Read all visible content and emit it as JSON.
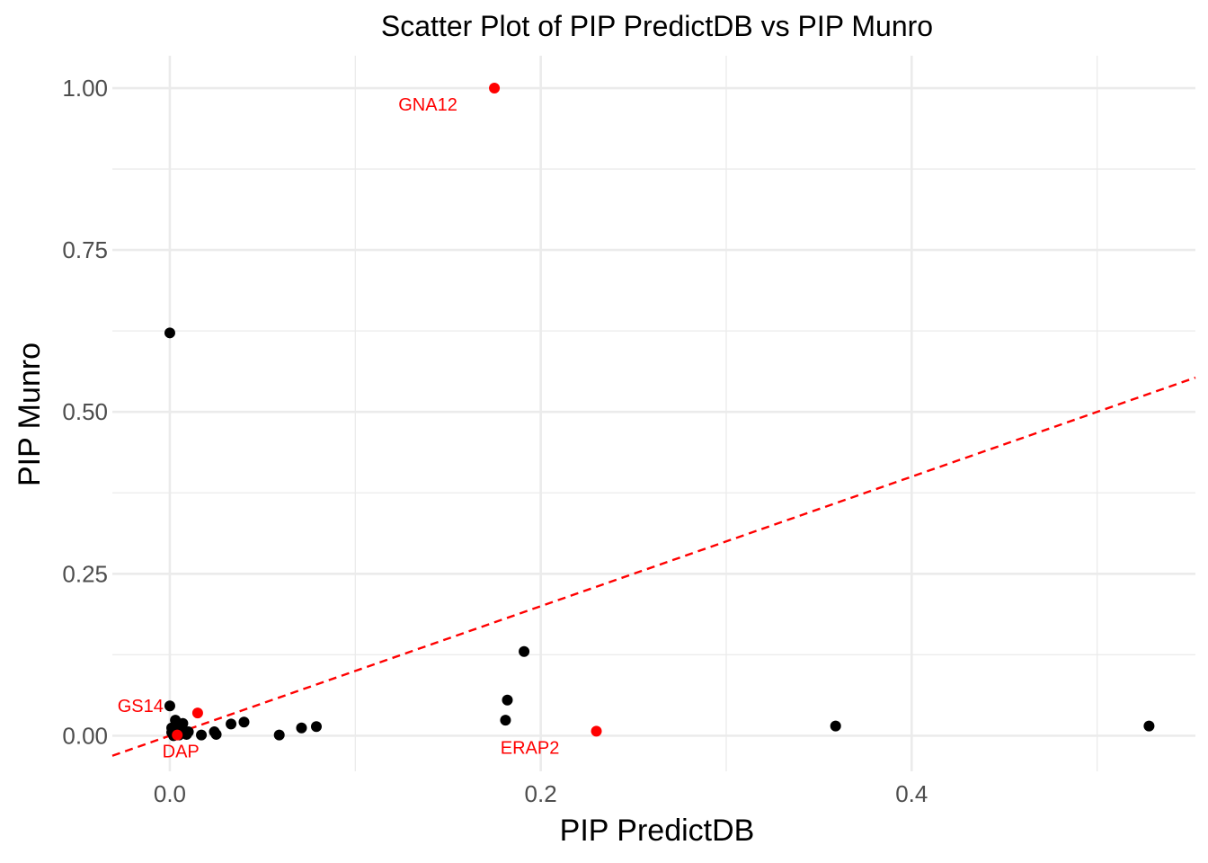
{
  "chart_data": {
    "type": "scatter",
    "title": "Scatter Plot of PIP PredictDB vs PIP Munro",
    "xlabel": "PIP PredictDB",
    "ylabel": "PIP Munro",
    "xlim": [
      -0.031,
      0.553
    ],
    "ylim": [
      -0.055,
      1.05
    ],
    "x_ticks": [
      0.0,
      0.2,
      0.4
    ],
    "x_tick_labels": [
      "0.0",
      "0.2",
      "0.4"
    ],
    "y_ticks": [
      0.0,
      0.25,
      0.5,
      0.75,
      1.0
    ],
    "y_tick_labels": [
      "0.00",
      "0.25",
      "0.50",
      "0.75",
      "1.00"
    ],
    "grid": true,
    "legend": "none",
    "colors": {
      "normal": "#000000",
      "highlight": "#ff0000",
      "reference_line": "#ff0000",
      "grid": "#ebebeb"
    },
    "reference_line": {
      "type": "identity",
      "style": "dashed",
      "slope": 1,
      "intercept": 0
    },
    "points": [
      {
        "x": 0.0,
        "y": 0.622
      },
      {
        "x": 0.0,
        "y": 0.046
      },
      {
        "x": 0.001,
        "y": 0.012
      },
      {
        "x": 0.001,
        "y": 0.005
      },
      {
        "x": 0.002,
        "y": 0.0
      },
      {
        "x": 0.003,
        "y": 0.008
      },
      {
        "x": 0.003,
        "y": 0.024
      },
      {
        "x": 0.004,
        "y": 0.003
      },
      {
        "x": 0.005,
        "y": 0.015
      },
      {
        "x": 0.005,
        "y": 0.001
      },
      {
        "x": 0.006,
        "y": 0.01
      },
      {
        "x": 0.007,
        "y": 0.019
      },
      {
        "x": 0.008,
        "y": 0.004
      },
      {
        "x": 0.009,
        "y": 0.002
      },
      {
        "x": 0.01,
        "y": 0.006
      },
      {
        "x": 0.017,
        "y": 0.001
      },
      {
        "x": 0.024,
        "y": 0.006
      },
      {
        "x": 0.025,
        "y": 0.002
      },
      {
        "x": 0.033,
        "y": 0.018
      },
      {
        "x": 0.04,
        "y": 0.021
      },
      {
        "x": 0.059,
        "y": 0.001
      },
      {
        "x": 0.071,
        "y": 0.012
      },
      {
        "x": 0.079,
        "y": 0.014
      },
      {
        "x": 0.181,
        "y": 0.024
      },
      {
        "x": 0.182,
        "y": 0.055
      },
      {
        "x": 0.191,
        "y": 0.13
      },
      {
        "x": 0.359,
        "y": 0.015
      },
      {
        "x": 0.528,
        "y": 0.015
      }
    ],
    "highlighted_points": [
      {
        "label": "GNA12",
        "x": 0.175,
        "y": 1.0
      },
      {
        "label": "ERAP2",
        "x": 0.23,
        "y": 0.007
      },
      {
        "label": "GS14",
        "x": 0.015,
        "y": 0.035
      },
      {
        "label": "DAP",
        "x": 0.004,
        "y": 0.001
      }
    ]
  }
}
